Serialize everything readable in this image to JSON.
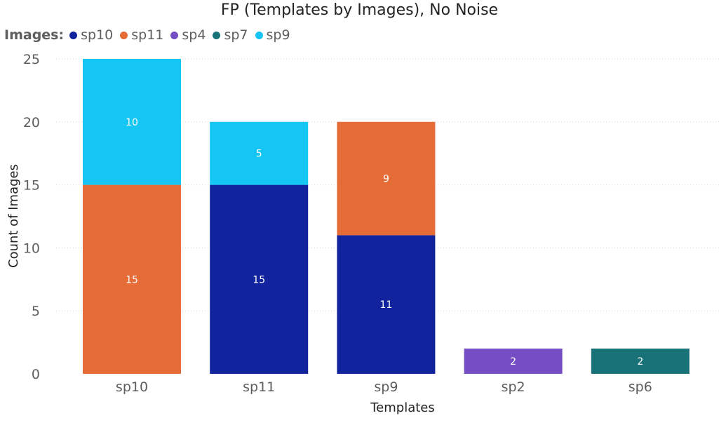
{
  "chart_data": {
    "type": "bar",
    "stacked": true,
    "title": "FP (Templates by Images), No Noise",
    "xlabel": "Templates",
    "ylabel": "Count of Images",
    "legend_title": "Images:",
    "legend_position": "top-left",
    "grid": true,
    "ylim": [
      0,
      25
    ],
    "yticks": [
      0,
      5,
      10,
      15,
      20,
      25
    ],
    "categories": [
      "sp10",
      "sp11",
      "sp9",
      "sp2",
      "sp6"
    ],
    "series": [
      {
        "name": "sp10",
        "color": "#12239e",
        "values": [
          0,
          15,
          11,
          0,
          0
        ]
      },
      {
        "name": "sp11",
        "color": "#e66c37",
        "values": [
          15,
          0,
          9,
          0,
          0
        ]
      },
      {
        "name": "sp4",
        "color": "#744ec2",
        "values": [
          0,
          0,
          0,
          2,
          0
        ]
      },
      {
        "name": "sp7",
        "color": "#197278",
        "values": [
          0,
          0,
          0,
          0,
          2
        ]
      },
      {
        "name": "sp9",
        "color": "#118dff",
        "values": [
          10,
          5,
          0,
          0,
          0
        ]
      }
    ],
    "series_display_colors": {
      "sp9": "#15c6f4"
    }
  }
}
